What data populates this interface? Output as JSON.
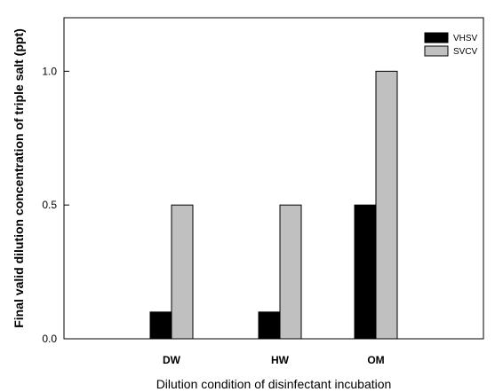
{
  "chart_data": {
    "type": "bar",
    "categories": [
      "DW",
      "HW",
      "OM"
    ],
    "series": [
      {
        "name": "VHSV",
        "values": [
          0.1,
          0.1,
          0.5
        ],
        "color": "#000000"
      },
      {
        "name": "SVCV",
        "values": [
          0.5,
          0.5,
          1.0
        ],
        "color": "#c0c0c0"
      }
    ],
    "title": "",
    "xlabel": "Dilution condition of disinfectant incubation",
    "ylabel": "Final valid dilution concentration of triple salt (ppt)",
    "ylim": [
      0,
      1.2
    ],
    "yticks": [
      0.0,
      0.5,
      1.0
    ],
    "ytick_labels": [
      "0.0",
      "0.5",
      "1.0"
    ],
    "grid": false,
    "legend_position": "top-right"
  }
}
